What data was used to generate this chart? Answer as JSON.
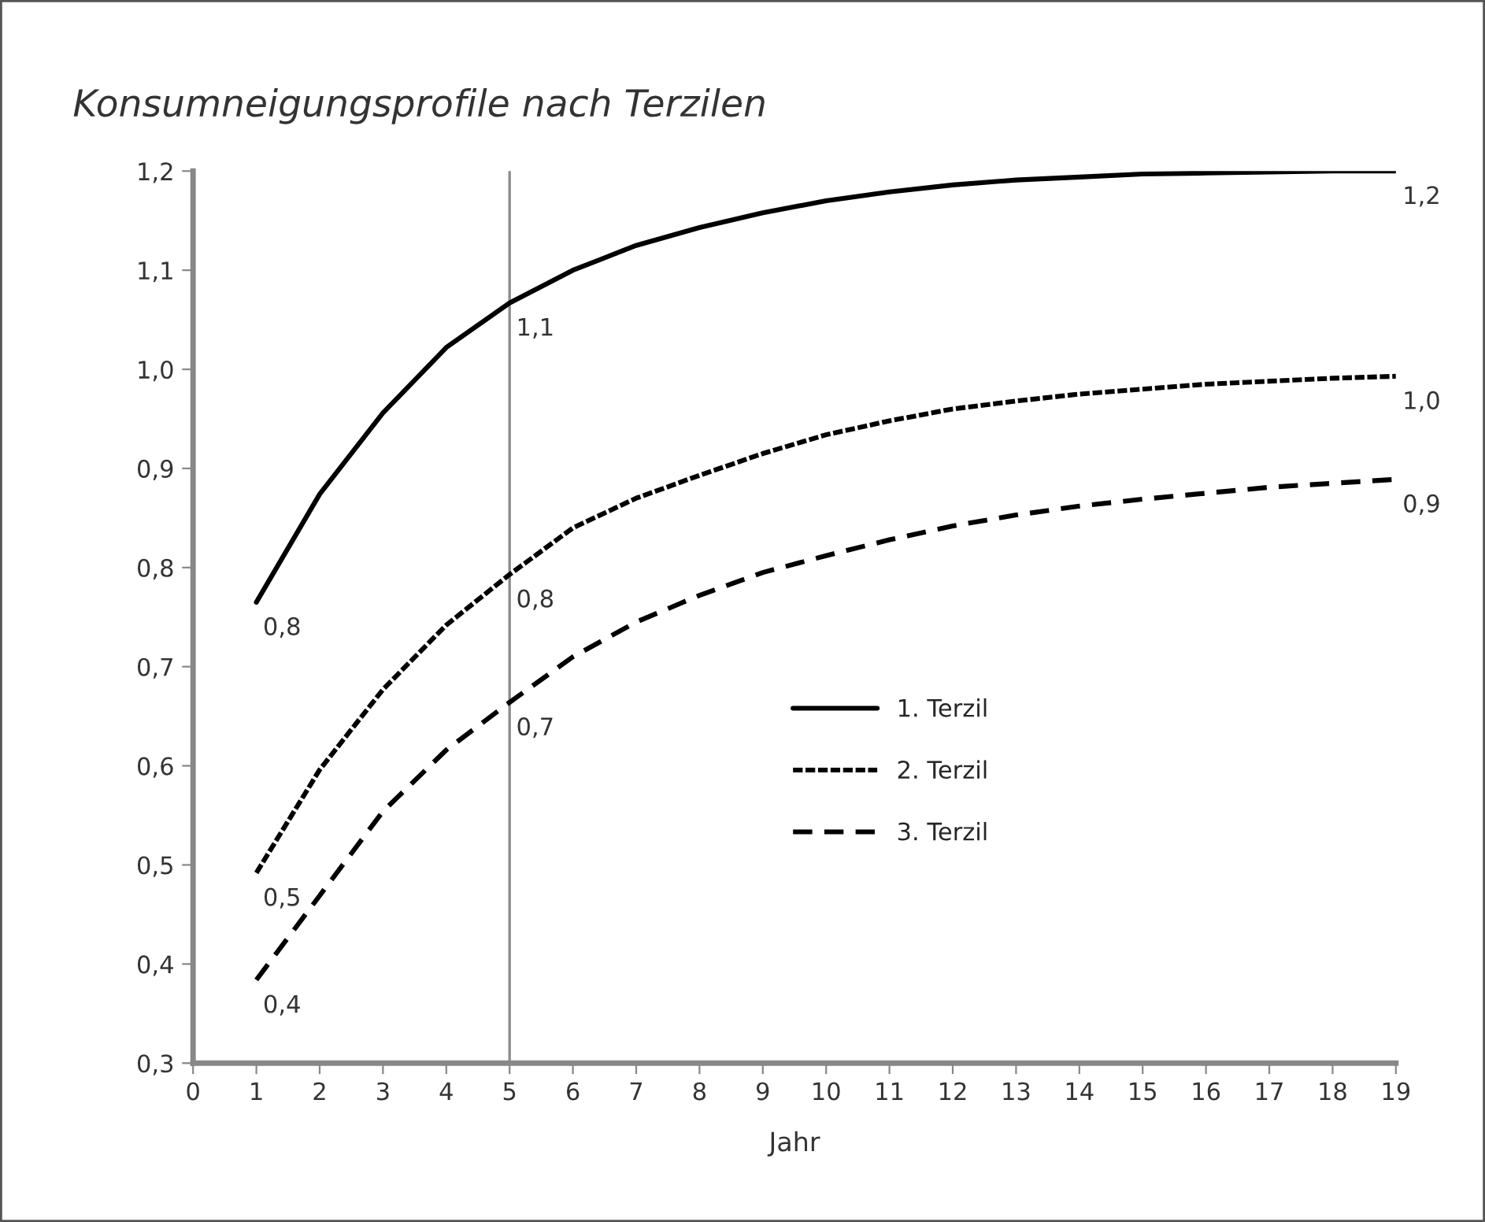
{
  "chart_data": {
    "type": "line",
    "title": "Konsumneigungsprofile nach Terzilen",
    "xlabel": "Jahr",
    "x": [
      1,
      2,
      3,
      4,
      5,
      6,
      7,
      8,
      9,
      10,
      11,
      12,
      13,
      14,
      15,
      16,
      17,
      18,
      19
    ],
    "series": [
      {
        "name": "1. Terzil",
        "color": "#000000",
        "line_style": "solid",
        "values": [
          0.765,
          0.874,
          0.956,
          1.022,
          1.067,
          1.1,
          1.125,
          1.143,
          1.158,
          1.17,
          1.179,
          1.186,
          1.191,
          1.194,
          1.197,
          1.198,
          1.199,
          1.2,
          1.2
        ]
      },
      {
        "name": "2. Terzil",
        "color": "#000000",
        "line_style": "dotted",
        "values": [
          0.492,
          0.596,
          0.677,
          0.742,
          0.793,
          0.84,
          0.87,
          0.893,
          0.915,
          0.934,
          0.948,
          0.96,
          0.968,
          0.975,
          0.98,
          0.985,
          0.988,
          0.991,
          0.993
        ]
      },
      {
        "name": "3. Terzil",
        "color": "#000000",
        "line_style": "dashed",
        "values": [
          0.384,
          0.469,
          0.554,
          0.616,
          0.664,
          0.71,
          0.745,
          0.772,
          0.795,
          0.812,
          0.828,
          0.842,
          0.853,
          0.862,
          0.869,
          0.875,
          0.881,
          0.885,
          0.889
        ]
      }
    ],
    "annotations": [
      {
        "text": "0,8",
        "x": 1,
        "y": 0.765
      },
      {
        "text": "1,1",
        "x": 5,
        "y": 1.067
      },
      {
        "text": "1,2",
        "x": 19,
        "y": 1.2
      },
      {
        "text": "0,5",
        "x": 1,
        "y": 0.492
      },
      {
        "text": "0,8",
        "x": 5,
        "y": 0.793
      },
      {
        "text": "1,0",
        "x": 19,
        "y": 0.993
      },
      {
        "text": "0,4",
        "x": 1,
        "y": 0.384
      },
      {
        "text": "0,7",
        "x": 5,
        "y": 0.664
      },
      {
        "text": "0,9",
        "x": 19,
        "y": 0.889
      }
    ],
    "ref_lines": [
      {
        "axis": "x",
        "value": 5,
        "color": "#8c8c8c"
      }
    ],
    "xlim": [
      0,
      19
    ],
    "xticks": [
      0,
      1,
      2,
      3,
      4,
      5,
      6,
      7,
      8,
      9,
      10,
      11,
      12,
      13,
      14,
      15,
      16,
      17,
      18,
      19
    ],
    "ylim": [
      0.3,
      1.2
    ],
    "yticks": [
      {
        "value": 0.3,
        "label": "0,3"
      },
      {
        "value": 0.4,
        "label": "0,4"
      },
      {
        "value": 0.5,
        "label": "0,5"
      },
      {
        "value": 0.6,
        "label": "0,6"
      },
      {
        "value": 0.7,
        "label": "0,7"
      },
      {
        "value": 0.8,
        "label": "0,8"
      },
      {
        "value": 0.9,
        "label": "0,9"
      },
      {
        "value": 1.0,
        "label": "1,0"
      },
      {
        "value": 1.1,
        "label": "1,1"
      },
      {
        "value": 1.2,
        "label": "1,2"
      }
    ],
    "grid": false,
    "legend": "bottom",
    "marker": "none"
  }
}
